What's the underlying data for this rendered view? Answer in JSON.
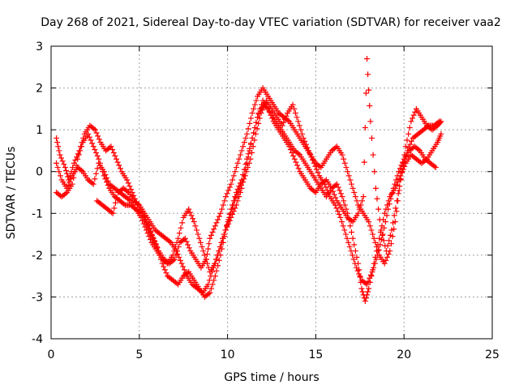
{
  "chart_data": {
    "type": "scatter",
    "title": "Day 268 of 2021, Sidereal Day-to-day VTEC variation (SDTVAR) for receiver vaa2",
    "xlabel": "GPS time / hours",
    "ylabel": "SDTVAR / TECUs",
    "xlim": [
      0,
      25
    ],
    "ylim": [
      -4,
      3
    ],
    "xticks": [
      "0",
      "5",
      "10",
      "15",
      "20",
      "25"
    ],
    "yticks": [
      "-4",
      "-3",
      "-2",
      "-1",
      "0",
      "1",
      "2",
      "3"
    ],
    "grid": true,
    "marker": "+",
    "color": "#ff0000",
    "series": [
      {
        "x": [
          0.3,
          0.5,
          0.8,
          1.0,
          1.3,
          1.6,
          1.9,
          2.2,
          2.5,
          2.8,
          3.1,
          3.4,
          3.7,
          4.0,
          4.3,
          4.6,
          4.9,
          5.2,
          5.5,
          5.8,
          6.1,
          6.4,
          6.7,
          7.0,
          7.3,
          7.6,
          7.9,
          8.2,
          8.5,
          8.8,
          9.0,
          9.3,
          9.6,
          9.9,
          10.2,
          10.5,
          10.8,
          11.1,
          11.4,
          11.7,
          12.0,
          12.3,
          12.6,
          12.9,
          13.2,
          13.5,
          13.8,
          14.1,
          14.4,
          14.7,
          15.0,
          15.3,
          15.6,
          15.9,
          16.2,
          16.5,
          16.8,
          17.1,
          17.4,
          17.7,
          18.0,
          18.3,
          18.6,
          18.9,
          19.2,
          19.5,
          19.8,
          20.1,
          20.4,
          20.7,
          21.0,
          21.3,
          21.6,
          21.9,
          22.1
        ],
        "y": [
          0.8,
          0.4,
          0.1,
          -0.2,
          0.2,
          0.5,
          0.9,
          1.1,
          1.0,
          0.7,
          0.5,
          0.6,
          0.3,
          0.0,
          -0.2,
          -0.5,
          -0.8,
          -1.0,
          -1.3,
          -1.6,
          -1.9,
          -2.1,
          -2.2,
          -2.1,
          -1.7,
          -1.6,
          -1.9,
          -2.1,
          -2.3,
          -2.1,
          -1.6,
          -1.3,
          -1.0,
          -0.6,
          -0.3,
          0.1,
          0.5,
          0.9,
          1.4,
          1.8,
          2.0,
          1.8,
          1.6,
          1.4,
          1.3,
          1.2,
          1.0,
          0.8,
          0.6,
          0.4,
          0.2,
          0.1,
          0.3,
          0.5,
          0.6,
          0.4,
          0.0,
          -0.4,
          -0.8,
          -1.0,
          -1.2,
          -1.6,
          -2.0,
          -2.2,
          -1.9,
          -1.2,
          -0.2,
          0.6,
          1.2,
          1.5,
          1.3,
          1.1,
          1.0,
          1.1,
          1.2
        ]
      },
      {
        "x": [
          0.3,
          0.6,
          0.9,
          1.2,
          1.5,
          1.8,
          2.1,
          2.4,
          2.7,
          3.0,
          3.3,
          3.6,
          3.9,
          4.2,
          4.5,
          4.8,
          5.1,
          5.4,
          5.7,
          6.0,
          6.3,
          6.6,
          6.9,
          7.2,
          7.5,
          7.8,
          8.1,
          8.4,
          8.7,
          9.0,
          9.3,
          9.6,
          9.9,
          10.2,
          10.5,
          10.8,
          11.1,
          11.4,
          11.7,
          12.0,
          12.3,
          12.6,
          12.9,
          13.2,
          13.5,
          13.8,
          14.1,
          14.4,
          14.7,
          15.0,
          15.3,
          15.6,
          15.9,
          16.2,
          16.5,
          16.8,
          17.1,
          17.4,
          17.6,
          17.8,
          18.0,
          18.3,
          18.6,
          18.9,
          19.2,
          19.5,
          19.8,
          20.1,
          20.4,
          20.7,
          21.0,
          21.3,
          21.6,
          21.9,
          22.1
        ],
        "y": [
          0.2,
          -0.2,
          -0.4,
          -0.1,
          0.1,
          0.0,
          -0.2,
          -0.3,
          0.2,
          0.0,
          -0.3,
          -0.4,
          -0.5,
          -0.6,
          -0.7,
          -0.9,
          -1.1,
          -1.4,
          -1.7,
          -1.9,
          -2.1,
          -2.2,
          -2.0,
          -1.6,
          -1.1,
          -0.9,
          -1.2,
          -1.6,
          -2.0,
          -2.4,
          -2.2,
          -1.8,
          -1.4,
          -1.1,
          -0.8,
          -0.4,
          0.2,
          0.8,
          1.3,
          1.6,
          1.5,
          1.3,
          1.1,
          0.9,
          0.7,
          0.5,
          0.4,
          0.2,
          0.0,
          -0.2,
          -0.4,
          -0.6,
          -0.4,
          -0.3,
          -0.6,
          -1.0,
          -1.6,
          -2.2,
          -2.8,
          -3.1,
          -2.8,
          -2.2,
          -1.6,
          -1.0,
          -0.6,
          -0.4,
          -0.1,
          0.2,
          0.4,
          0.3,
          0.2,
          0.3,
          0.5,
          0.7,
          0.9
        ]
      },
      {
        "x": [
          0.3,
          0.6,
          0.9,
          1.2,
          1.5,
          1.8,
          2.1,
          2.4,
          2.7,
          3.0,
          3.3,
          3.6,
          3.9,
          4.2,
          4.5,
          4.8,
          5.1,
          5.4,
          5.7,
          6.0,
          6.3,
          6.6,
          6.9,
          7.2,
          7.5,
          7.8,
          8.1,
          8.4,
          8.7,
          9.0,
          9.3,
          9.6,
          9.9,
          10.2,
          10.5,
          10.8,
          11.1,
          11.4,
          11.7,
          12.0,
          12.3,
          12.6,
          12.9,
          13.2,
          13.5,
          13.8,
          14.1,
          14.4,
          14.7,
          15.0,
          15.3,
          15.6,
          15.9,
          16.2,
          16.5,
          16.8,
          17.1,
          17.4,
          17.7,
          17.9,
          18.1,
          18.4,
          18.7,
          19.0,
          19.3,
          19.6,
          19.9,
          20.2,
          20.5,
          20.8,
          21.1,
          21.4,
          21.7,
          22.0
        ],
        "y": [
          -0.5,
          -0.6,
          -0.5,
          -0.3,
          0.3,
          0.7,
          0.9,
          0.6,
          0.3,
          -0.1,
          -0.4,
          -0.6,
          -0.7,
          -0.8,
          -0.8,
          -0.9,
          -1.0,
          -1.2,
          -1.5,
          -1.8,
          -2.2,
          -2.5,
          -2.6,
          -2.7,
          -2.5,
          -2.4,
          -2.6,
          -2.8,
          -3.0,
          -2.9,
          -2.5,
          -2.0,
          -1.4,
          -0.9,
          -0.5,
          -0.2,
          0.3,
          0.8,
          1.3,
          1.7,
          1.5,
          1.2,
          1.0,
          0.8,
          0.6,
          0.3,
          0.0,
          -0.2,
          -0.4,
          -0.5,
          -0.3,
          -0.2,
          -0.4,
          -0.7,
          -0.9,
          -1.1,
          -1.2,
          -1.0,
          -0.6,
          2.7,
          1.2,
          -0.4,
          -1.4,
          -1.9,
          -1.4,
          -0.7,
          0.0,
          0.5,
          0.8,
          0.9,
          1.0,
          1.1,
          1.1,
          1.2
        ]
      },
      {
        "x": [
          2.6,
          2.9,
          3.2,
          3.5,
          3.8,
          4.1,
          4.4,
          4.7,
          5.0,
          5.3,
          5.6,
          5.9,
          6.2,
          6.5,
          6.8,
          7.1,
          7.4,
          7.7,
          8.0,
          8.3,
          8.6,
          8.9,
          9.2,
          9.5,
          9.8,
          10.1,
          10.4,
          10.7,
          11.0,
          11.3,
          11.6,
          11.9,
          12.2,
          12.5,
          12.8,
          13.1,
          13.4,
          13.7,
          14.0,
          14.3,
          14.6,
          14.9,
          15.2,
          15.5,
          15.8,
          16.1,
          16.4,
          16.7,
          17.0,
          17.3,
          17.6,
          17.9,
          18.2,
          18.5,
          18.8,
          19.1,
          19.4,
          19.7,
          20.0,
          20.3,
          20.6,
          20.9,
          21.2,
          21.5,
          21.8
        ],
        "y": [
          -0.7,
          -0.8,
          -0.9,
          -1.0,
          -0.5,
          -0.4,
          -0.5,
          -0.7,
          -0.8,
          -1.0,
          -1.2,
          -1.4,
          -1.5,
          -1.6,
          -1.7,
          -1.9,
          -2.2,
          -2.5,
          -2.7,
          -2.8,
          -2.9,
          -2.7,
          -2.3,
          -1.9,
          -1.5,
          -1.1,
          -0.7,
          -0.4,
          -0.1,
          0.3,
          0.9,
          1.4,
          1.7,
          1.5,
          1.3,
          1.1,
          1.4,
          1.6,
          1.2,
          0.8,
          0.5,
          0.2,
          -0.1,
          -0.3,
          -0.6,
          -0.8,
          -1.1,
          -1.5,
          -1.9,
          -2.3,
          -2.6,
          -2.7,
          -2.4,
          -2.0,
          -1.5,
          -0.9,
          -0.4,
          0.0,
          0.3,
          0.5,
          0.6,
          0.5,
          0.3,
          0.2,
          0.1
        ]
      }
    ]
  }
}
